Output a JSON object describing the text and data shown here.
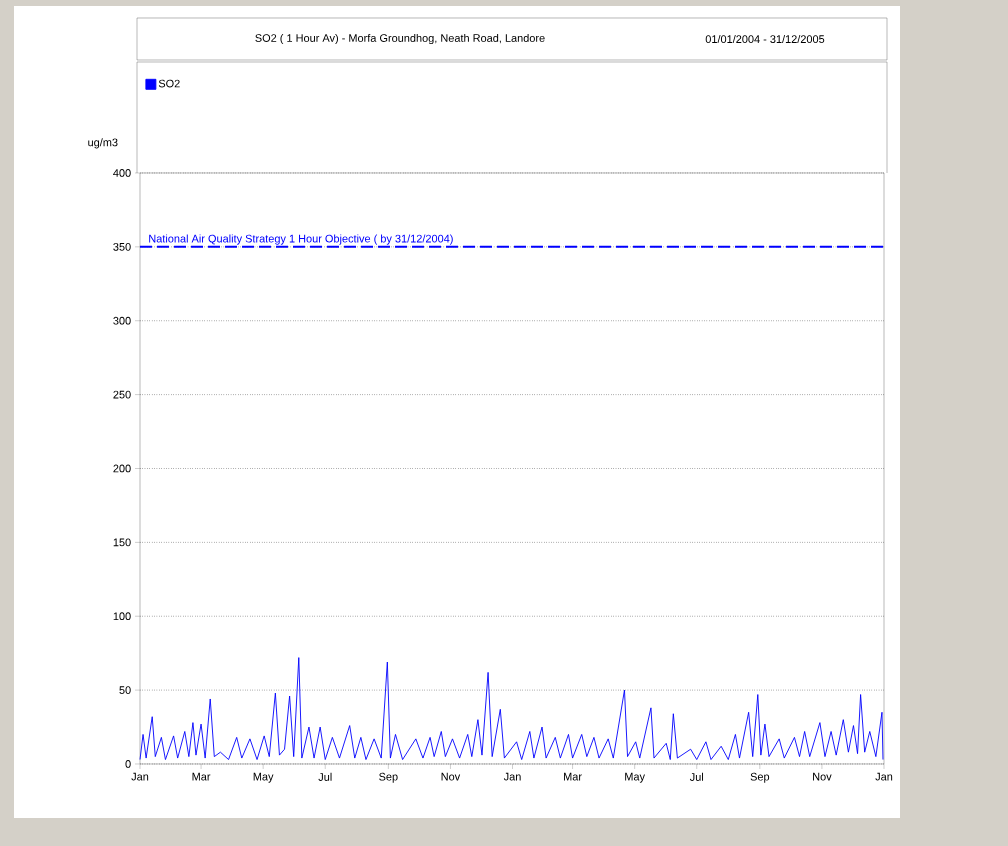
{
  "chart_data": {
    "type": "line",
    "title": "SO2 ( 1 Hour Av) - Morfa Groundhog, Neath Road, Landore",
    "subtitle": "01/01/2004 - 31/12/2005",
    "ylabel": "ug/m3",
    "series": [
      {
        "name": "SO2",
        "color": "#0000ff",
        "x": [
          "2004-01-01",
          "2004-01-04",
          "2004-01-07",
          "2004-01-13",
          "2004-01-16",
          "2004-01-22",
          "2004-01-26",
          "2004-02-03",
          "2004-02-07",
          "2004-02-14",
          "2004-02-18",
          "2004-02-22",
          "2004-02-25",
          "2004-03-01",
          "2004-03-05",
          "2004-03-10",
          "2004-03-14",
          "2004-03-20",
          "2004-03-28",
          "2004-04-05",
          "2004-04-10",
          "2004-04-18",
          "2004-04-25",
          "2004-05-02",
          "2004-05-07",
          "2004-05-13",
          "2004-05-17",
          "2004-05-22",
          "2004-05-27",
          "2004-05-31",
          "2004-06-05",
          "2004-06-08",
          "2004-06-15",
          "2004-06-20",
          "2004-06-26",
          "2004-07-01",
          "2004-07-08",
          "2004-07-15",
          "2004-07-25",
          "2004-07-30",
          "2004-08-05",
          "2004-08-10",
          "2004-08-18",
          "2004-08-25",
          "2004-08-31",
          "2004-09-03",
          "2004-09-08",
          "2004-09-15",
          "2004-09-28",
          "2004-10-05",
          "2004-10-12",
          "2004-10-16",
          "2004-10-23",
          "2004-10-27",
          "2004-11-03",
          "2004-11-10",
          "2004-11-18",
          "2004-11-22",
          "2004-11-28",
          "2004-12-02",
          "2004-12-08",
          "2004-12-12",
          "2004-12-20",
          "2004-12-24",
          "2005-01-05",
          "2005-01-10",
          "2005-01-18",
          "2005-01-22",
          "2005-01-30",
          "2005-02-03",
          "2005-02-12",
          "2005-02-17",
          "2005-02-25",
          "2005-03-01",
          "2005-03-10",
          "2005-03-15",
          "2005-03-22",
          "2005-03-27",
          "2005-04-05",
          "2005-04-10",
          "2005-04-21",
          "2005-04-24",
          "2005-05-02",
          "2005-05-06",
          "2005-05-17",
          "2005-05-20",
          "2005-06-01",
          "2005-06-05",
          "2005-06-08",
          "2005-06-12",
          "2005-06-25",
          "2005-07-01",
          "2005-07-10",
          "2005-07-15",
          "2005-07-25",
          "2005-08-01",
          "2005-08-08",
          "2005-08-12",
          "2005-08-21",
          "2005-08-25",
          "2005-08-30",
          "2005-09-02",
          "2005-09-06",
          "2005-09-10",
          "2005-09-20",
          "2005-09-25",
          "2005-10-05",
          "2005-10-10",
          "2005-10-15",
          "2005-10-20",
          "2005-10-30",
          "2005-11-04",
          "2005-11-10",
          "2005-11-15",
          "2005-11-22",
          "2005-11-27",
          "2005-12-02",
          "2005-12-06",
          "2005-12-09",
          "2005-12-13",
          "2005-12-18",
          "2005-12-24",
          "2005-12-30",
          "2005-12-31"
        ],
        "values": [
          3,
          20,
          4,
          32,
          5,
          18,
          3,
          19,
          4,
          22,
          5,
          28,
          6,
          27,
          4,
          44,
          5,
          8,
          3,
          18,
          4,
          17,
          3,
          19,
          5,
          48,
          6,
          10,
          46,
          5,
          72,
          4,
          25,
          4,
          25,
          3,
          18,
          4,
          26,
          4,
          18,
          3,
          17,
          4,
          69,
          4,
          20,
          3,
          17,
          4,
          18,
          5,
          22,
          5,
          17,
          4,
          20,
          5,
          30,
          6,
          62,
          5,
          37,
          4,
          15,
          3,
          22,
          4,
          25,
          4,
          18,
          4,
          20,
          4,
          20,
          5,
          18,
          4,
          17,
          4,
          50,
          5,
          15,
          4,
          38,
          4,
          14,
          3,
          34,
          4,
          10,
          3,
          15,
          3,
          12,
          3,
          20,
          4,
          35,
          5,
          47,
          6,
          27,
          5,
          17,
          4,
          18,
          5,
          22,
          5,
          28,
          5,
          22,
          6,
          30,
          8,
          26,
          7,
          47,
          8,
          22,
          5,
          35,
          3
        ]
      }
    ],
    "xlim": [
      "2004-01-01",
      "2006-01-01"
    ],
    "xticks": [
      {
        "value": "2004-01-01",
        "label": "Jan"
      },
      {
        "value": "2004-03-01",
        "label": "Mar"
      },
      {
        "value": "2004-05-01",
        "label": "May"
      },
      {
        "value": "2004-07-01",
        "label": "Jul"
      },
      {
        "value": "2004-09-01",
        "label": "Sep"
      },
      {
        "value": "2004-11-01",
        "label": "Nov"
      },
      {
        "value": "2005-01-01",
        "label": "Jan"
      },
      {
        "value": "2005-03-01",
        "label": "Mar"
      },
      {
        "value": "2005-05-01",
        "label": "May"
      },
      {
        "value": "2005-07-01",
        "label": "Jul"
      },
      {
        "value": "2005-09-01",
        "label": "Sep"
      },
      {
        "value": "2005-11-01",
        "label": "Nov"
      },
      {
        "value": "2006-01-01",
        "label": "Jan"
      }
    ],
    "ylim": [
      0,
      400
    ],
    "yticks": [
      0,
      50,
      100,
      150,
      200,
      250,
      300,
      350,
      400
    ],
    "grid": "y",
    "legend": "top left",
    "line_style": "solid",
    "marker": "none",
    "ref_lines": [
      {
        "axis": "y",
        "value": 350,
        "label": "National Air Quality Strategy 1 Hour Objective ( by 31/12/2004)",
        "color": "#0000ff",
        "line_style": "dashed"
      }
    ]
  }
}
